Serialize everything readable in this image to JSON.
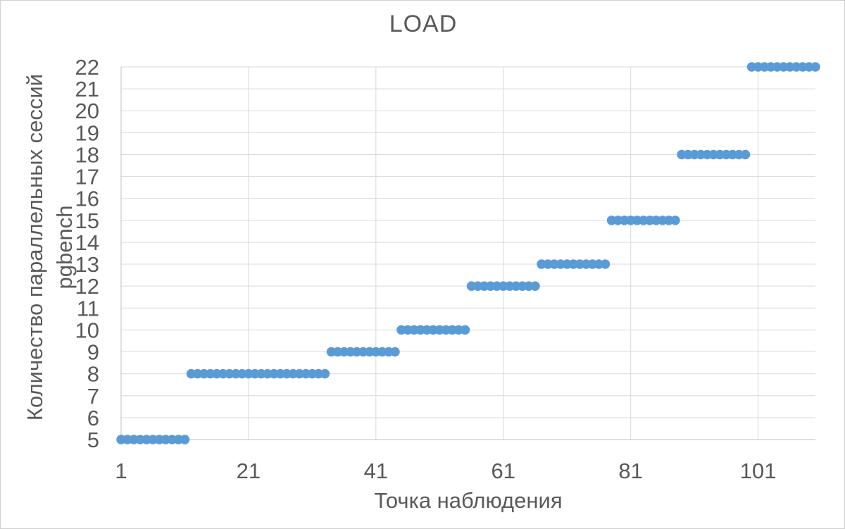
{
  "chart_data": {
    "type": "scatter",
    "title": "LOAD",
    "xlabel": "Точка наблюдения",
    "ylabel_line1": "Количество параллельных сессий",
    "ylabel_line2": "pgbench",
    "xlim": [
      1,
      110
    ],
    "ylim": [
      5,
      22
    ],
    "x_ticks": [
      1,
      21,
      41,
      61,
      81,
      101
    ],
    "y_ticks": [
      5,
      6,
      7,
      8,
      9,
      10,
      11,
      12,
      13,
      14,
      15,
      16,
      17,
      18,
      19,
      20,
      21,
      22
    ],
    "grid": true,
    "legend": "none",
    "marker_color": "#5B9BD5",
    "gridline_color": "#d9d9d9",
    "axis_line_color": "#bfbfbf",
    "text_color": "#595959",
    "series": [
      {
        "name": "LOAD",
        "segments": [
          {
            "y": 5,
            "x_start": 1,
            "x_end": 11
          },
          {
            "y": 8,
            "x_start": 12,
            "x_end": 33
          },
          {
            "y": 9,
            "x_start": 34,
            "x_end": 44
          },
          {
            "y": 10,
            "x_start": 45,
            "x_end": 55
          },
          {
            "y": 12,
            "x_start": 56,
            "x_end": 66
          },
          {
            "y": 13,
            "x_start": 67,
            "x_end": 77
          },
          {
            "y": 15,
            "x_start": 78,
            "x_end": 88
          },
          {
            "y": 18,
            "x_start": 89,
            "x_end": 99
          },
          {
            "y": 22,
            "x_start": 100,
            "x_end": 110
          }
        ]
      }
    ]
  }
}
